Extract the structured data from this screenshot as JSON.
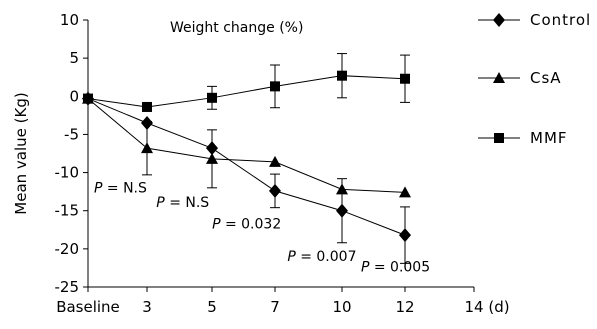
{
  "chart_data": {
    "type": "line",
    "inner_title": "Weight change (%)",
    "ylabel": "Mean value (Kg)",
    "ylim": [
      -25,
      10
    ],
    "yticks": [
      10,
      5,
      0,
      -5,
      -10,
      -15,
      -20,
      -25
    ],
    "x_categories": [
      "Baseline",
      "3",
      "5",
      "7",
      "10",
      "12",
      "14"
    ],
    "x_unit": "(d)",
    "grid": false,
    "legend_position": "right",
    "series": [
      {
        "name": "Control",
        "marker": "diamond",
        "values": [
          -0.3,
          -3.5,
          -6.8,
          -12.4,
          -15.0,
          -18.2
        ],
        "errors": [
          null,
          null,
          null,
          2.2,
          4.2,
          3.7
        ]
      },
      {
        "name": "CsA",
        "marker": "triangle",
        "values": [
          -0.3,
          -6.8,
          -8.2,
          -8.6,
          -12.2,
          -12.6
        ],
        "errors": [
          null,
          3.5,
          3.8,
          null,
          null,
          null
        ]
      },
      {
        "name": "MMF",
        "marker": "square",
        "values": [
          -0.3,
          -1.4,
          -0.2,
          1.3,
          2.7,
          2.3
        ],
        "errors": [
          null,
          null,
          1.5,
          2.8,
          2.9,
          3.1
        ]
      }
    ],
    "annotations": [
      {
        "p": "P",
        "eq": " = ",
        "text": "N.S",
        "x_index": 0.55,
        "y": -12.6
      },
      {
        "p": "P",
        "eq": " = ",
        "text": "N.S",
        "x_index": 1.55,
        "y": -14.5
      },
      {
        "p": "P",
        "eq": " = ",
        "text": "0.032",
        "x_index": 2.55,
        "y": -17.3
      },
      {
        "p": "P",
        "eq": " = ",
        "text": "0.007",
        "x_index": 3.7,
        "y": -21.6
      },
      {
        "p": "P",
        "eq": " = ",
        "text": "0.005",
        "x_index": 4.85,
        "y": -23.0
      }
    ]
  }
}
